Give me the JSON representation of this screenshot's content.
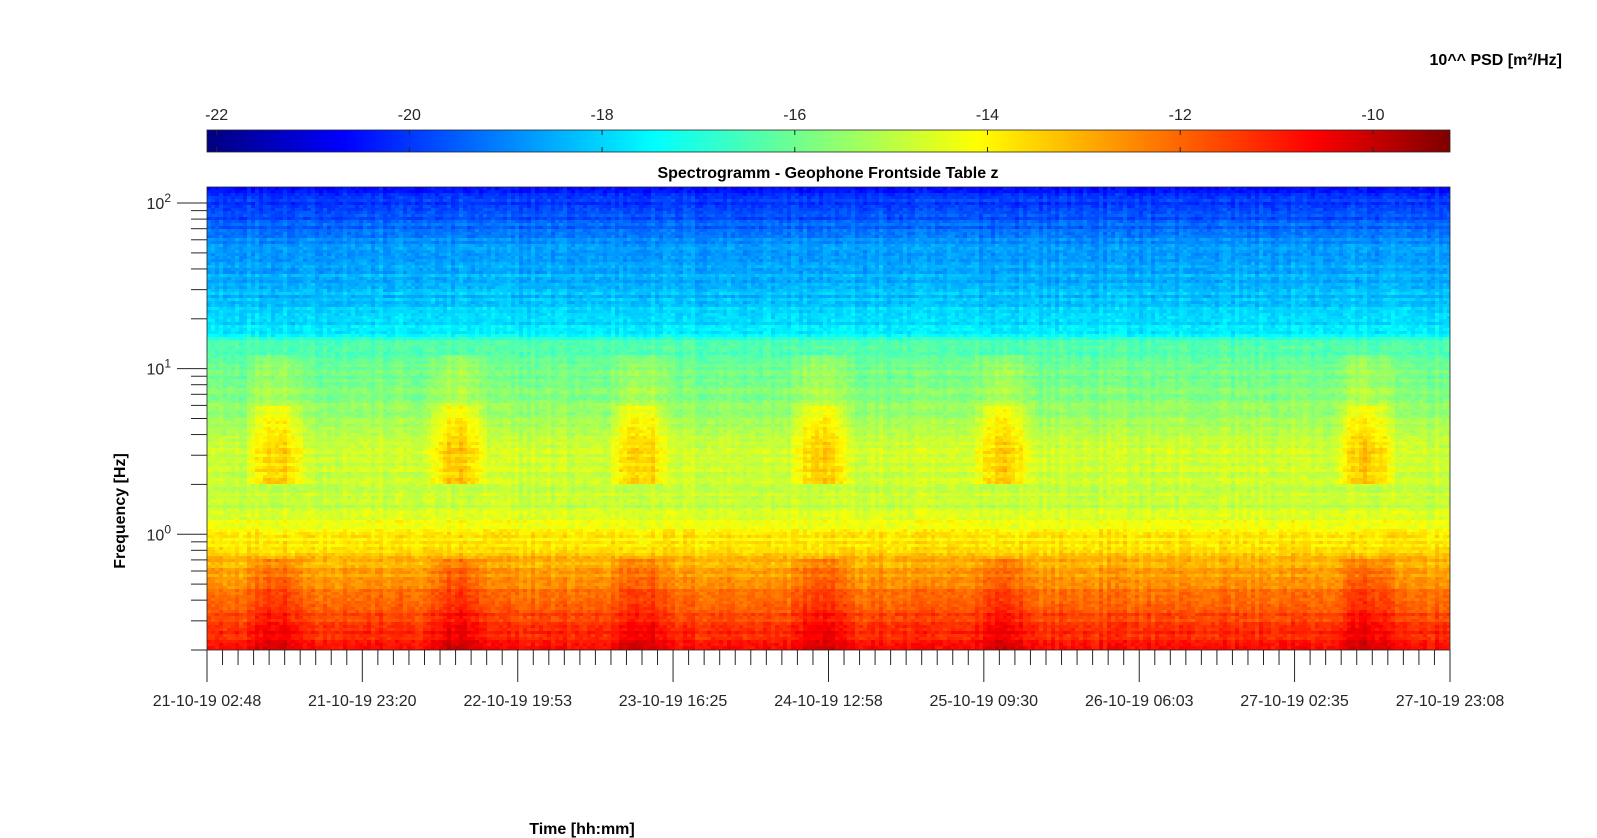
{
  "chart_data": {
    "type": "heatmap",
    "title": "Spectrogramm - Geophone Frontside Table z",
    "xlabel": "Time [hh:mm]",
    "ylabel": "Frequency [Hz]",
    "colorbar": {
      "label": "10^^ PSD [m²/Hz]",
      "ticks": [
        -22,
        -20,
        -18,
        -16,
        -14,
        -12,
        -10
      ],
      "range": [
        -22.1,
        -9.2
      ],
      "colormap": "jet",
      "position": "top"
    },
    "x_axis": {
      "type": "time",
      "range": [
        "21-10-19 02:48",
        "27-10-19 23:08"
      ],
      "tick_labels": [
        "21-10-19 02:48",
        "21-10-19 23:20",
        "22-10-19 19:53",
        "23-10-19 16:25",
        "24-10-19 12:58",
        "25-10-19 09:30",
        "26-10-19 06:03",
        "27-10-19 02:35",
        "27-10-19 23:08"
      ]
    },
    "y_axis": {
      "scale": "log",
      "range": [
        0.2,
        125
      ],
      "tick_values": [
        1,
        10,
        100
      ],
      "tick_labels": [
        {
          "base": "10",
          "exp": "0"
        },
        {
          "base": "10",
          "exp": "1"
        },
        {
          "base": "10",
          "exp": "2"
        }
      ]
    },
    "frequency_profile": {
      "frequencies_hz": [
        0.2,
        0.3,
        0.5,
        0.7,
        1,
        1.5,
        3,
        5,
        10,
        15,
        16,
        25,
        40,
        60,
        80,
        125
      ],
      "log_psd": [
        -10.9,
        -11.6,
        -12.6,
        -13.2,
        -13.9,
        -14.8,
        -14.6,
        -15.3,
        -15.9,
        -16.4,
        -17.5,
        -18.0,
        -18.3,
        -18.8,
        -19.4,
        -20.1
      ]
    },
    "activity_periods": [
      {
        "start": "21-10-19 08:00",
        "end": "21-10-19 16:00"
      },
      {
        "start": "22-10-19 08:00",
        "end": "22-10-19 16:00"
      },
      {
        "start": "23-10-19 08:00",
        "end": "23-10-19 16:00"
      },
      {
        "start": "24-10-19 08:00",
        "end": "24-10-19 16:00"
      },
      {
        "start": "25-10-19 08:00",
        "end": "25-10-19 16:00"
      },
      {
        "start": "27-10-19 08:00",
        "end": "27-10-19 16:00"
      }
    ]
  }
}
